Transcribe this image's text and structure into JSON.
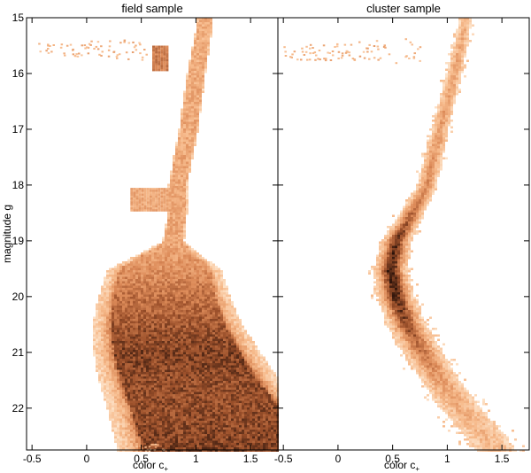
{
  "chart_data": [
    {
      "type": "heatmap",
      "title": "field sample",
      "xlabel": "color c",
      "xlabel_subscript": "+",
      "ylabel": "magnitude g",
      "xlim": [
        -0.55,
        1.75
      ],
      "ylim": [
        22.75,
        15.0
      ],
      "y_inverted": true,
      "xticks": [
        -0.5,
        0,
        0.5,
        1,
        1.5
      ],
      "xtick_labels": [
        "-0.5",
        "0",
        "0.5",
        "1",
        "1.5"
      ],
      "yticks": [
        15,
        16,
        17,
        18,
        19,
        20,
        21,
        22
      ],
      "ytick_labels": [
        "15",
        "16",
        "17",
        "18",
        "19",
        "20",
        "21",
        "22"
      ],
      "grid": false,
      "colormap": [
        "#fde2c8",
        "#f6b98a",
        "#dc8a58",
        "#9a4f2a",
        "#2a120a"
      ],
      "ridge": [
        {
          "g": 15.1,
          "c": 1.07,
          "w": 0.06,
          "d": 0.3
        },
        {
          "g": 16.0,
          "c": 0.99,
          "w": 0.07,
          "d": 0.32
        },
        {
          "g": 17.0,
          "c": 0.92,
          "w": 0.07,
          "d": 0.33
        },
        {
          "g": 18.0,
          "c": 0.82,
          "w": 0.07,
          "d": 0.34
        },
        {
          "g": 18.5,
          "c": 0.82,
          "w": 0.07,
          "d": 0.34
        },
        {
          "g": 19.0,
          "c": 0.78,
          "w": 0.08,
          "d": 0.35
        },
        {
          "g": 19.5,
          "c": 0.7,
          "w": 0.4,
          "d": 0.45
        },
        {
          "g": 20.0,
          "c": 0.7,
          "w": 0.45,
          "d": 0.6
        },
        {
          "g": 20.5,
          "c": 0.73,
          "w": 0.5,
          "d": 0.7
        },
        {
          "g": 21.0,
          "c": 0.82,
          "w": 0.55,
          "d": 0.8
        },
        {
          "g": 21.5,
          "c": 0.93,
          "w": 0.6,
          "d": 0.75
        },
        {
          "g": 22.0,
          "c": 1.08,
          "w": 0.65,
          "d": 0.75
        },
        {
          "g": 22.75,
          "c": 1.25,
          "w": 0.7,
          "d": 0.8
        }
      ],
      "extras": [
        {
          "g0": 18.05,
          "g1": 18.45,
          "c0": 0.4,
          "c1": 0.88,
          "d": 0.34
        },
        {
          "g0": 15.5,
          "g1": 15.95,
          "c0": 0.6,
          "c1": 0.73,
          "d": 0.55
        }
      ],
      "sparse": [
        {
          "g": 15.55,
          "c0": -0.45,
          "c1": 0.55,
          "spread": 0.2,
          "n": 70
        },
        {
          "g": 22.7,
          "c0": 0.35,
          "c1": 0.75,
          "spread": 0.08,
          "n": 25
        }
      ]
    },
    {
      "type": "heatmap",
      "title": "cluster sample",
      "xlabel": "color c",
      "xlabel_subscript": "+",
      "xlim": [
        -0.55,
        1.75
      ],
      "ylim": [
        22.75,
        15.0
      ],
      "y_inverted": true,
      "xticks": [
        -0.5,
        0,
        0.5,
        1,
        1.5
      ],
      "xtick_labels": [
        "-0.5",
        "0",
        "0.5",
        "1",
        "1.5"
      ],
      "yticks": [
        15,
        16,
        17,
        18,
        19,
        20,
        21,
        22
      ],
      "grid": false,
      "colormap": [
        "#fde2c8",
        "#f6b98a",
        "#dc8a58",
        "#9a4f2a",
        "#2a120a"
      ],
      "ridge": [
        {
          "g": 15.1,
          "c": 1.15,
          "w": 0.05,
          "d": 0.3
        },
        {
          "g": 16.0,
          "c": 1.05,
          "w": 0.06,
          "d": 0.35
        },
        {
          "g": 17.0,
          "c": 0.92,
          "w": 0.06,
          "d": 0.4
        },
        {
          "g": 18.0,
          "c": 0.8,
          "w": 0.07,
          "d": 0.45
        },
        {
          "g": 18.5,
          "c": 0.66,
          "w": 0.08,
          "d": 0.6
        },
        {
          "g": 19.0,
          "c": 0.52,
          "w": 0.09,
          "d": 0.85
        },
        {
          "g": 19.5,
          "c": 0.47,
          "w": 0.1,
          "d": 0.95
        },
        {
          "g": 20.0,
          "c": 0.52,
          "w": 0.11,
          "d": 0.9
        },
        {
          "g": 20.5,
          "c": 0.62,
          "w": 0.12,
          "d": 0.75
        },
        {
          "g": 21.0,
          "c": 0.77,
          "w": 0.13,
          "d": 0.55
        },
        {
          "g": 21.5,
          "c": 0.93,
          "w": 0.14,
          "d": 0.4
        },
        {
          "g": 22.0,
          "c": 1.12,
          "w": 0.16,
          "d": 0.3
        },
        {
          "g": 22.75,
          "c": 1.45,
          "w": 0.18,
          "d": 0.22
        }
      ],
      "extras": [],
      "sparse": [
        {
          "g": 15.6,
          "c0": -0.5,
          "c1": 0.75,
          "spread": 0.25,
          "n": 90
        }
      ]
    }
  ]
}
